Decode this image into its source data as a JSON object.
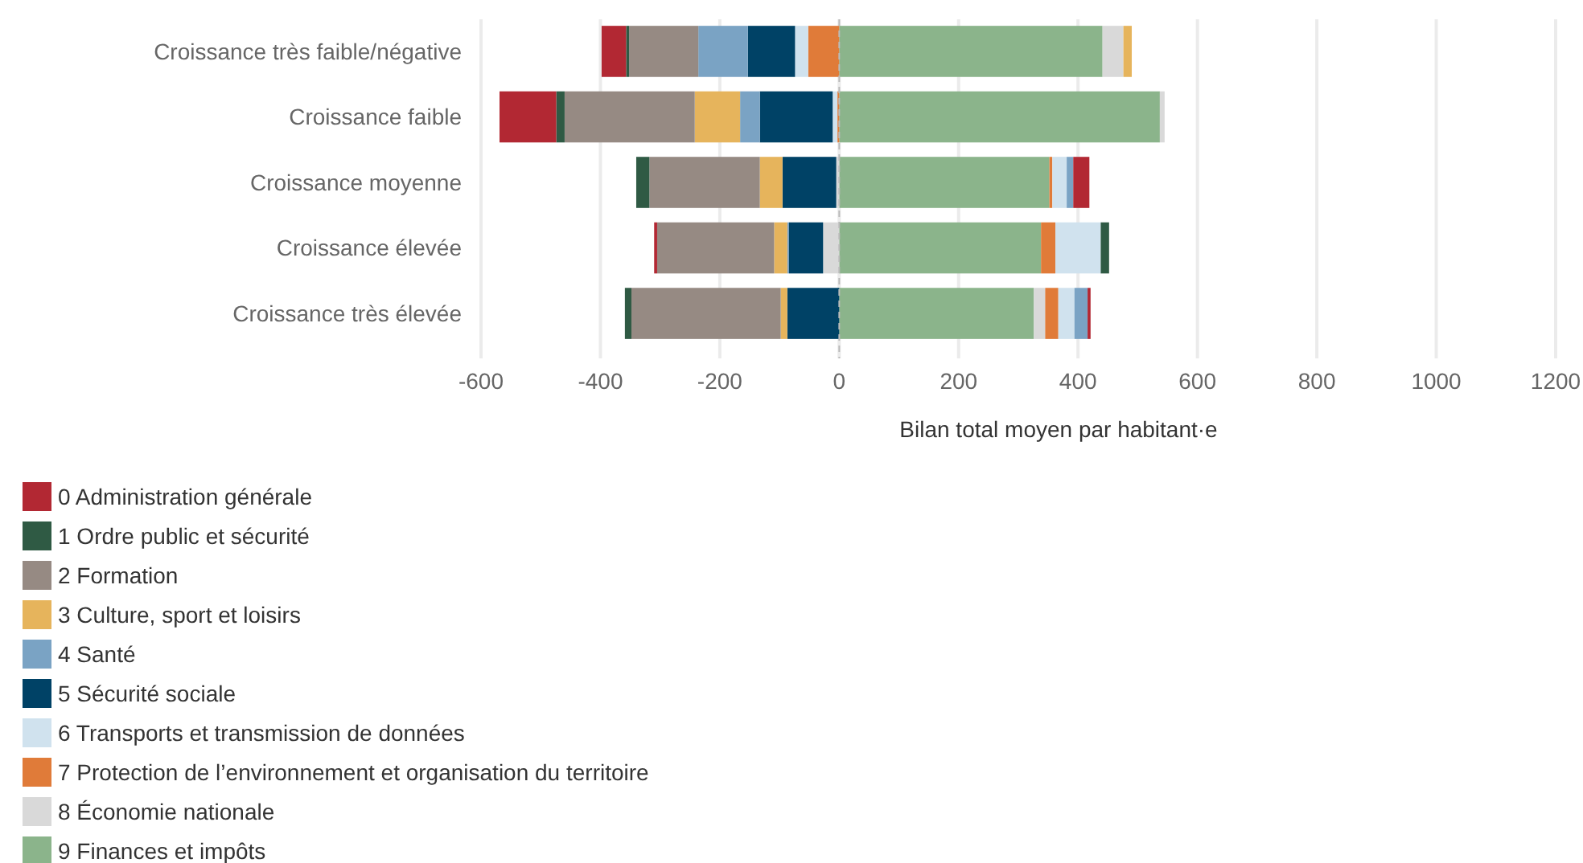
{
  "chart_data": {
    "type": "bar",
    "orientation": "horizontal",
    "stacked": true,
    "xlabel": "Bilan total moyen par habitant·e",
    "categories": [
      "Croissance très faible/négative",
      "Croissance faible",
      "Croissance moyenne",
      "Croissance élevée",
      "Croissance très élevée"
    ],
    "series": [
      {
        "name": "9 Finances et impôts",
        "color": "#8bb48b",
        "values": [
          441,
          537,
          352,
          338,
          326
        ]
      },
      {
        "name": "8 Économie nationale",
        "color": "#d9d9d9",
        "values": [
          35,
          8,
          -5,
          -27,
          19
        ]
      },
      {
        "name": "7 Protection de l’environnement et organisation du territoire",
        "color": "#e07b39",
        "values": [
          -52,
          -3,
          5,
          24,
          22
        ]
      },
      {
        "name": "6 Transports et transmission de données",
        "color": "#d0e2ee",
        "values": [
          -22,
          -8,
          24,
          76,
          27
        ]
      },
      {
        "name": "5 Sécurité sociale",
        "color": "#004266",
        "values": [
          -79,
          -122,
          -90,
          -57,
          -87
        ]
      },
      {
        "name": "4 Santé",
        "color": "#7aa3c4",
        "values": [
          -83,
          -33,
          11,
          -3,
          22
        ]
      },
      {
        "name": "3 Culture, sport et loisirs",
        "color": "#e6b45c",
        "values": [
          14,
          -76,
          -38,
          -22,
          -11
        ]
      },
      {
        "name": "2 Formation",
        "color": "#968a83",
        "values": [
          -116,
          -218,
          -185,
          -196,
          -250
        ]
      },
      {
        "name": "1 Ordre public et sécurité",
        "color": "#2f5a44",
        "values": [
          -5,
          -14,
          -22,
          14,
          -11
        ]
      },
      {
        "name": "0 Administration générale",
        "color": "#b22833",
        "values": [
          -41,
          -95,
          27,
          -5,
          5
        ]
      }
    ],
    "xlim": [
      -600,
      1200
    ],
    "xticks": [
      -600,
      -400,
      -200,
      0,
      200,
      400,
      600,
      800,
      1000,
      1200
    ],
    "grid": "x",
    "legend": "bottom",
    "ref_lines": [
      {
        "axis": "x",
        "value": 0,
        "color": "#bbbbbb",
        "line_style": "dashed"
      }
    ]
  }
}
